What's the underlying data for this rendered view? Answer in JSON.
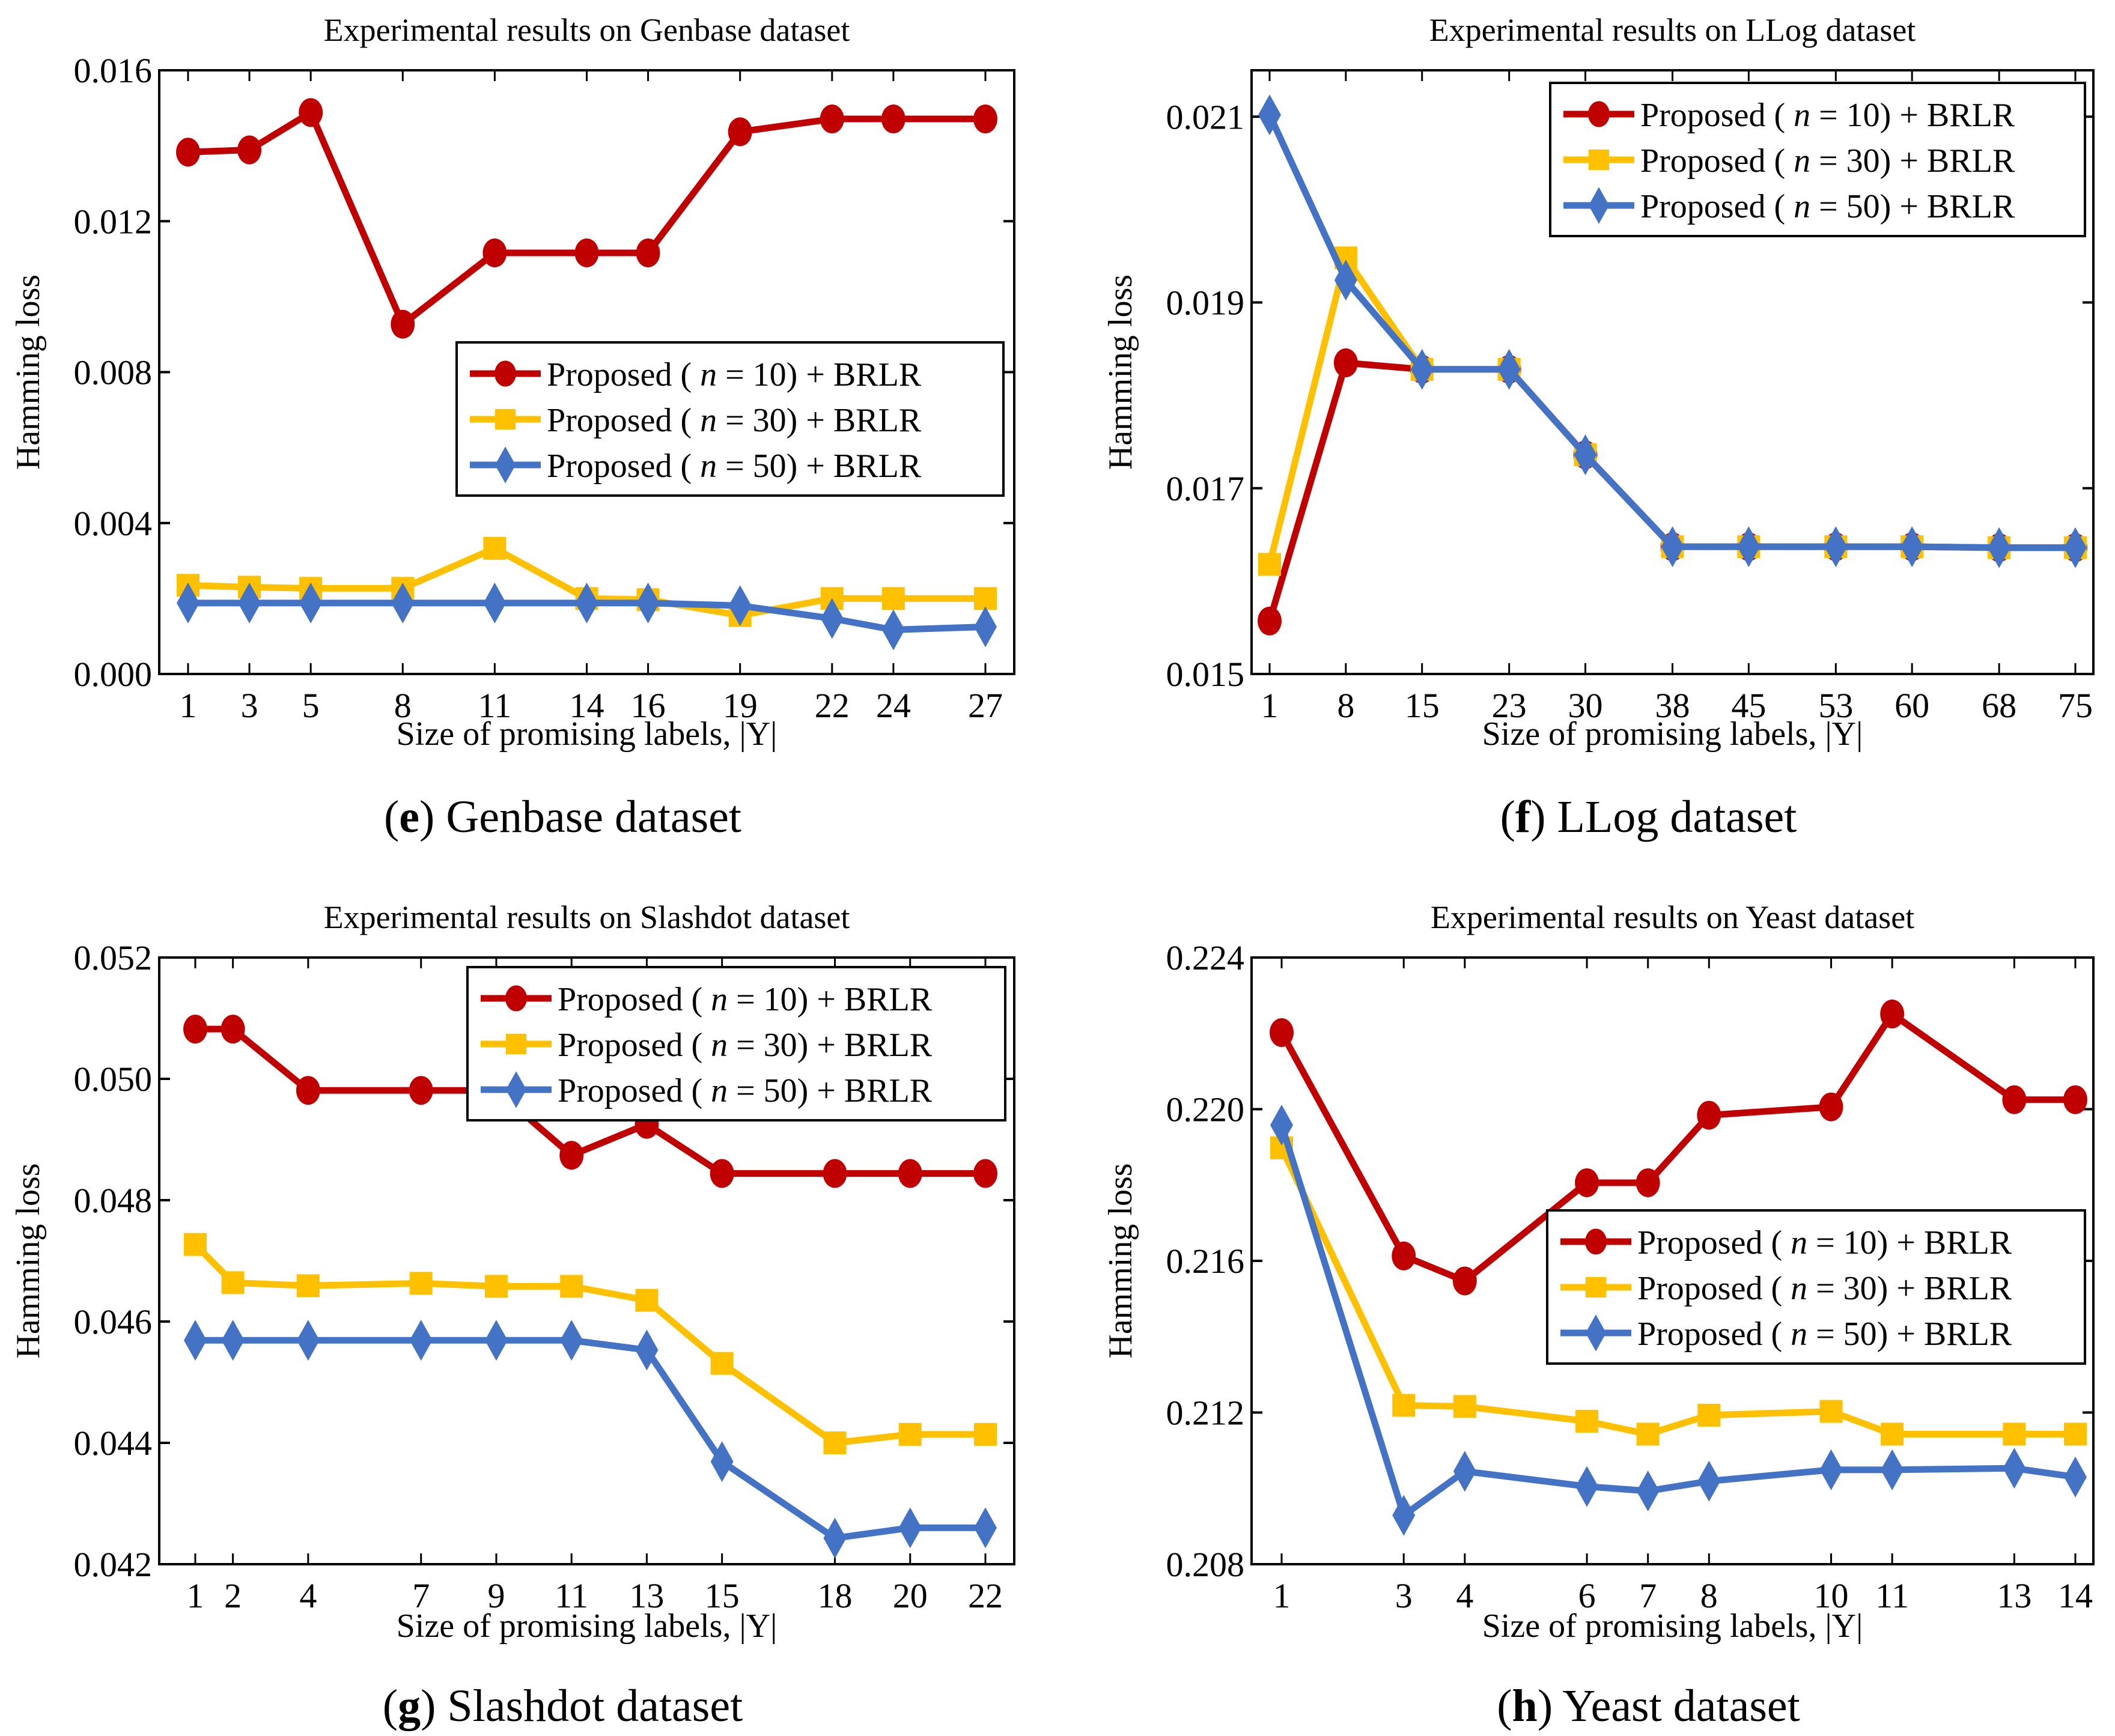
{
  "figure": {
    "panels": [
      {
        "caption_letter": "e",
        "caption_text": "Genbase dataset"
      },
      {
        "caption_letter": "f",
        "caption_text": "LLog dataset"
      },
      {
        "caption_letter": "g",
        "caption_text": "Slashdot dataset"
      },
      {
        "caption_letter": "h",
        "caption_text": "Yeast dataset"
      }
    ],
    "series_colors": {
      "n10": "#C00000",
      "n30": "#FFC000",
      "n50": "#4472C4"
    },
    "markers": {
      "n10": "circle",
      "n30": "square",
      "n50": "diamond"
    }
  },
  "chart_data": [
    {
      "type": "line",
      "title": "Experimental results on Genbase dataset",
      "xlabel": "Size of promising labels, |Y|",
      "ylabel": "Hamming loss",
      "x": [
        1,
        3,
        5,
        8,
        11,
        14,
        16,
        19,
        22,
        24,
        27
      ],
      "xticks": [
        "1",
        "3",
        "5",
        "8",
        "11",
        "14",
        "16",
        "19",
        "22",
        "24",
        "27"
      ],
      "yticks": [
        "0.000",
        "0.004",
        "0.008",
        "0.012",
        "0.016"
      ],
      "ylim": [
        0.0,
        0.016
      ],
      "legend": "center-right",
      "grid": false,
      "series": [
        {
          "name": "Proposed ( n = 10) + BRLR",
          "values": [
            0.01383,
            0.01389,
            0.01488,
            0.00927,
            0.01116,
            0.01116,
            0.01116,
            0.01437,
            0.01471,
            0.01471,
            0.01471
          ]
        },
        {
          "name": "Proposed ( n = 30) + BRLR",
          "values": [
            0.00235,
            0.0023,
            0.00227,
            0.00227,
            0.00333,
            0.002,
            0.00197,
            0.00155,
            0.002,
            0.002,
            0.002
          ]
        },
        {
          "name": "Proposed ( n = 50) + BRLR",
          "values": [
            0.00188,
            0.00188,
            0.00188,
            0.00188,
            0.00188,
            0.00188,
            0.00188,
            0.00181,
            0.00147,
            0.00117,
            0.00125
          ]
        }
      ]
    },
    {
      "type": "line",
      "title": "Experimental results on LLog dataset",
      "xlabel": "Size of promising labels, |Y|",
      "ylabel": "Hamming loss",
      "x": [
        1,
        8,
        15,
        23,
        30,
        38,
        45,
        53,
        60,
        68,
        75
      ],
      "xticks": [
        "1",
        "8",
        "15",
        "23",
        "30",
        "38",
        "45",
        "53",
        "60",
        "68",
        "75"
      ],
      "yticks": [
        "0.015",
        "0.017",
        "0.019",
        "0.021"
      ],
      "ylim": [
        0.015,
        0.0215
      ],
      "legend": "top-right",
      "grid": false,
      "series": [
        {
          "name": "Proposed ( n = 10) + BRLR",
          "values": [
            0.01557,
            0.01835,
            0.01828,
            0.01828,
            0.01736,
            0.01637,
            0.01637,
            0.01637,
            0.01637,
            0.01636,
            0.01636
          ]
        },
        {
          "name": "Proposed ( n = 30) + BRLR",
          "values": [
            0.01618,
            0.01948,
            0.01828,
            0.01828,
            0.01736,
            0.01637,
            0.01637,
            0.01637,
            0.01637,
            0.01636,
            0.01636
          ]
        },
        {
          "name": "Proposed ( n = 50) + BRLR",
          "values": [
            0.02102,
            0.01924,
            0.01828,
            0.01828,
            0.01736,
            0.01637,
            0.01637,
            0.01637,
            0.01637,
            0.01636,
            0.01636
          ]
        }
      ]
    },
    {
      "type": "line",
      "title": "Experimental results on Slashdot dataset",
      "xlabel": "Size of promising labels, |Y|",
      "ylabel": "Hamming loss",
      "x": [
        1,
        2,
        4,
        7,
        9,
        11,
        13,
        15,
        18,
        20,
        22
      ],
      "xticks": [
        "1",
        "2",
        "4",
        "7",
        "9",
        "11",
        "13",
        "15",
        "18",
        "20",
        "22"
      ],
      "yticks": [
        "0.042",
        "0.044",
        "0.046",
        "0.048",
        "0.050",
        "0.052"
      ],
      "ylim": [
        0.042,
        0.052
      ],
      "legend": "top-right",
      "grid": false,
      "series": [
        {
          "name": "Proposed ( n = 10) + BRLR",
          "values": [
            0.05082,
            0.05082,
            0.04981,
            0.04981,
            0.04981,
            0.04874,
            0.04925,
            0.04844,
            0.04844,
            0.04844,
            0.04844
          ]
        },
        {
          "name": "Proposed ( n = 30) + BRLR",
          "values": [
            0.04727,
            0.04664,
            0.04659,
            0.04663,
            0.04658,
            0.04658,
            0.04635,
            0.04531,
            0.044,
            0.04414,
            0.04414
          ]
        },
        {
          "name": "Proposed ( n = 50) + BRLR",
          "values": [
            0.04569,
            0.04569,
            0.04569,
            0.04569,
            0.04569,
            0.04569,
            0.04553,
            0.04369,
            0.04243,
            0.0426,
            0.0426
          ]
        }
      ]
    },
    {
      "type": "line",
      "title": "Experimental results on Yeast dataset",
      "xlabel": "Size of promising labels, |Y|",
      "ylabel": "Hamming loss",
      "x": [
        1,
        3,
        4,
        6,
        7,
        8,
        10,
        11,
        13,
        14
      ],
      "xticks": [
        "1",
        "3",
        "4",
        "6",
        "7",
        "8",
        "10",
        "11",
        "13",
        "14"
      ],
      "yticks": [
        "0.208",
        "0.212",
        "0.216",
        "0.220",
        "0.224"
      ],
      "ylim": [
        0.208,
        0.224
      ],
      "legend": "center-right",
      "grid": false,
      "series": [
        {
          "name": "Proposed ( n = 10) + BRLR",
          "values": [
            0.22202,
            0.21613,
            0.21547,
            0.21806,
            0.21806,
            0.21984,
            0.22006,
            0.22251,
            0.22025,
            0.22025
          ]
        },
        {
          "name": "Proposed ( n = 30) + BRLR",
          "values": [
            0.21898,
            0.21219,
            0.21216,
            0.21177,
            0.21143,
            0.21193,
            0.21203,
            0.21143,
            0.21143,
            0.21143
          ]
        },
        {
          "name": "Proposed ( n = 50) + BRLR",
          "values": [
            0.21958,
            0.20929,
            0.21045,
            0.21005,
            0.20993,
            0.21019,
            0.21049,
            0.21049,
            0.21053,
            0.2103
          ]
        }
      ]
    }
  ]
}
